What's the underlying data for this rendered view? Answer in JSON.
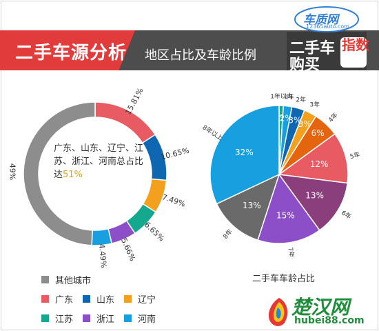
{
  "header": {
    "title": "二手车源分析",
    "subtitle": "地区占比及车龄比例"
  },
  "brand": {
    "site": "车质网",
    "url": "12365auto.com",
    "line1": "二手车",
    "line2": "购买",
    "stamp": "指数"
  },
  "chart_data": [
    {
      "type": "pie",
      "title": "",
      "center_text_prefix": "广东、山东、辽宁、江苏、浙江、河南总占比达",
      "center_text_value": "51%",
      "slices": [
        {
          "name": "广东",
          "value": 15.81,
          "label": "15.81%",
          "color": "#e85b63"
        },
        {
          "name": "山东",
          "value": 10.65,
          "label": "10.65%",
          "color": "#0f67b1"
        },
        {
          "name": "辽宁",
          "value": 7.49,
          "label": "7.49%",
          "color": "#f2a01e"
        },
        {
          "name": "江苏",
          "value": 6.65,
          "label": "6.65%",
          "color": "#14a98f"
        },
        {
          "name": "浙江",
          "value": 5.66,
          "label": "5.66%",
          "color": "#8c4fc7"
        },
        {
          "name": "河南",
          "value": 4.49,
          "label": "4.49%",
          "color": "#189fe0"
        },
        {
          "name": "其他城市",
          "value": 49.25,
          "label": "49%",
          "color": "#8d8d8d"
        }
      ],
      "legend": [
        {
          "name": "其他城市",
          "color": "#8d8d8d"
        },
        {
          "name": "广东",
          "color": "#e85b63"
        },
        {
          "name": "山东",
          "color": "#0f67b1"
        },
        {
          "name": "辽宁",
          "color": "#f2a01e"
        },
        {
          "name": "江苏",
          "color": "#14a98f"
        },
        {
          "name": "浙江",
          "color": "#8c4fc7"
        },
        {
          "name": "河南",
          "color": "#189fe0"
        }
      ]
    },
    {
      "type": "pie",
      "title": "二手车车龄占比",
      "slices": [
        {
          "name": "1年以内",
          "value": 1,
          "label": "1%",
          "color": "#14a98f"
        },
        {
          "name": "1年",
          "value": 2,
          "label": "2%",
          "color": "#189fe0"
        },
        {
          "name": "2年",
          "value": 3,
          "label": "3%",
          "color": "#0f67b1"
        },
        {
          "name": "3年",
          "value": 3,
          "label": "3%",
          "color": "#f2a01e"
        },
        {
          "name": "4年",
          "value": 6,
          "label": "6%",
          "color": "#e5640e"
        },
        {
          "name": "5年",
          "value": 12,
          "label": "12%",
          "color": "#e85b63"
        },
        {
          "name": "6年",
          "value": 13,
          "label": "13%",
          "color": "#8a3e7c"
        },
        {
          "name": "7年",
          "value": 15,
          "label": "15%",
          "color": "#8c4fc7"
        },
        {
          "name": "8年",
          "value": 13,
          "label": "13%",
          "color": "#6a6a6a"
        },
        {
          "name": "8年以上",
          "value": 32,
          "label": "32%",
          "color": "#189fe0"
        }
      ]
    }
  ],
  "watermark": {
    "name": "楚汉网",
    "url": "hubei88.com"
  }
}
